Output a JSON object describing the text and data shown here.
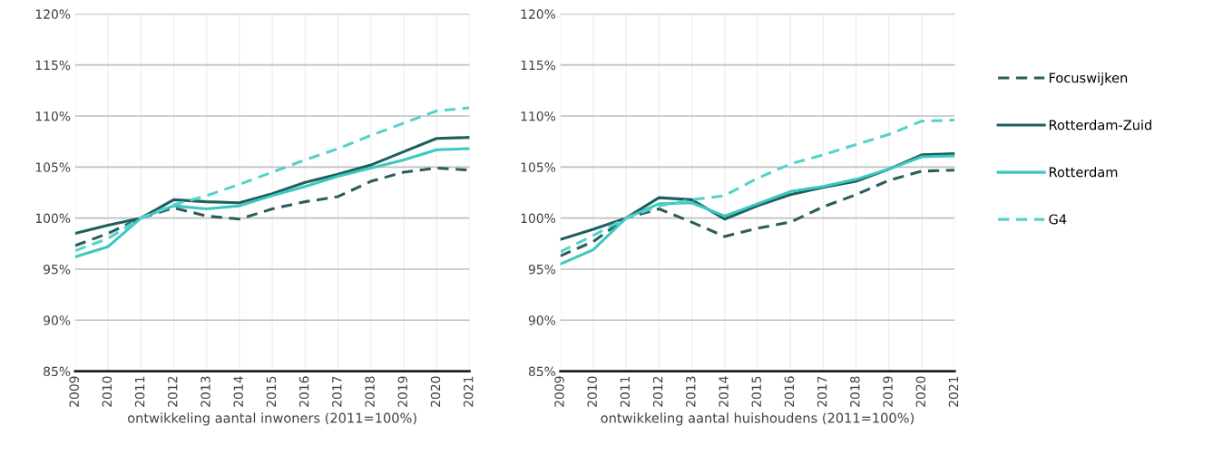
{
  "chart_data": [
    {
      "type": "line",
      "xlabel": "ontwikkeling aantal inwoners (2011=100%)",
      "categories": [
        "2009",
        "2010",
        "2011",
        "2012",
        "2013",
        "2014",
        "2015",
        "2016",
        "2017",
        "2018",
        "2019",
        "2020",
        "2021"
      ],
      "ylim": [
        85,
        120
      ],
      "yticks": [
        {
          "value": 85,
          "label": "85%"
        },
        {
          "value": 90,
          "label": "90%"
        },
        {
          "value": 95,
          "label": "95%"
        },
        {
          "value": 100,
          "label": "100%"
        },
        {
          "value": 105,
          "label": "105%"
        },
        {
          "value": 110,
          "label": "110%"
        },
        {
          "value": 115,
          "label": "115%"
        },
        {
          "value": 120,
          "label": "120%"
        }
      ],
      "grid": true,
      "series": [
        {
          "color": "#2b5d5b",
          "line_style": "dashed",
          "values": [
            97.3,
            98.5,
            100,
            101.0,
            100.2,
            99.9,
            100.9,
            101.6,
            102.1,
            103.6,
            104.5,
            104.9,
            104.7
          ]
        },
        {
          "color": "#1e5f5d",
          "line_style": "solid",
          "values": [
            98.5,
            99.3,
            100,
            101.8,
            101.6,
            101.5,
            102.4,
            103.5,
            104.3,
            105.2,
            106.5,
            107.8,
            107.9
          ]
        },
        {
          "color": "#3cc8c0",
          "line_style": "solid",
          "values": [
            96.2,
            97.2,
            100,
            101.2,
            100.9,
            101.2,
            102.2,
            103.1,
            104.1,
            104.9,
            105.7,
            106.7,
            106.8
          ]
        },
        {
          "color": "#55d2ca",
          "line_style": "dashed",
          "values": [
            96.8,
            98.0,
            100,
            101.3,
            102.2,
            103.3,
            104.5,
            105.7,
            106.8,
            108.1,
            109.3,
            110.5,
            110.8
          ]
        }
      ]
    },
    {
      "type": "line",
      "xlabel": "ontwikkeling aantal huishoudens (2011=100%)",
      "categories": [
        "2009",
        "2010",
        "2011",
        "2012",
        "2013",
        "2014",
        "2015",
        "2016",
        "2017",
        "2018",
        "2019",
        "2020",
        "2021"
      ],
      "ylim": [
        85,
        120
      ],
      "yticks": [
        {
          "value": 85,
          "label": "85%"
        },
        {
          "value": 90,
          "label": "90%"
        },
        {
          "value": 95,
          "label": "95%"
        },
        {
          "value": 100,
          "label": "100%"
        },
        {
          "value": 105,
          "label": "105%"
        },
        {
          "value": 110,
          "label": "110%"
        },
        {
          "value": 115,
          "label": "115%"
        },
        {
          "value": 120,
          "label": "120%"
        }
      ],
      "grid": true,
      "legend": "right",
      "series": [
        {
          "name": "Focuswijken",
          "color": "#2b5d5b",
          "line_style": "dashed",
          "values": [
            96.3,
            97.7,
            100,
            100.9,
            99.6,
            98.2,
            99.0,
            99.6,
            101.1,
            102.3,
            103.7,
            104.6,
            104.7
          ]
        },
        {
          "name": "Rotterdam-Zuid",
          "color": "#1e5f5d",
          "line_style": "solid",
          "values": [
            97.9,
            98.9,
            100,
            102.0,
            101.8,
            99.9,
            101.2,
            102.3,
            103.0,
            103.6,
            104.8,
            106.2,
            106.3
          ]
        },
        {
          "name": "Rotterdam",
          "color": "#3cc8c0",
          "line_style": "solid",
          "values": [
            95.5,
            96.9,
            100,
            101.4,
            101.5,
            100.2,
            101.4,
            102.6,
            103.1,
            103.8,
            104.8,
            106.0,
            106.1
          ]
        },
        {
          "name": "G4",
          "color": "#55d2ca",
          "line_style": "dashed",
          "values": [
            96.7,
            98.3,
            100,
            101.2,
            101.8,
            102.2,
            103.9,
            105.3,
            106.2,
            107.2,
            108.2,
            109.5,
            109.6
          ]
        }
      ]
    }
  ]
}
